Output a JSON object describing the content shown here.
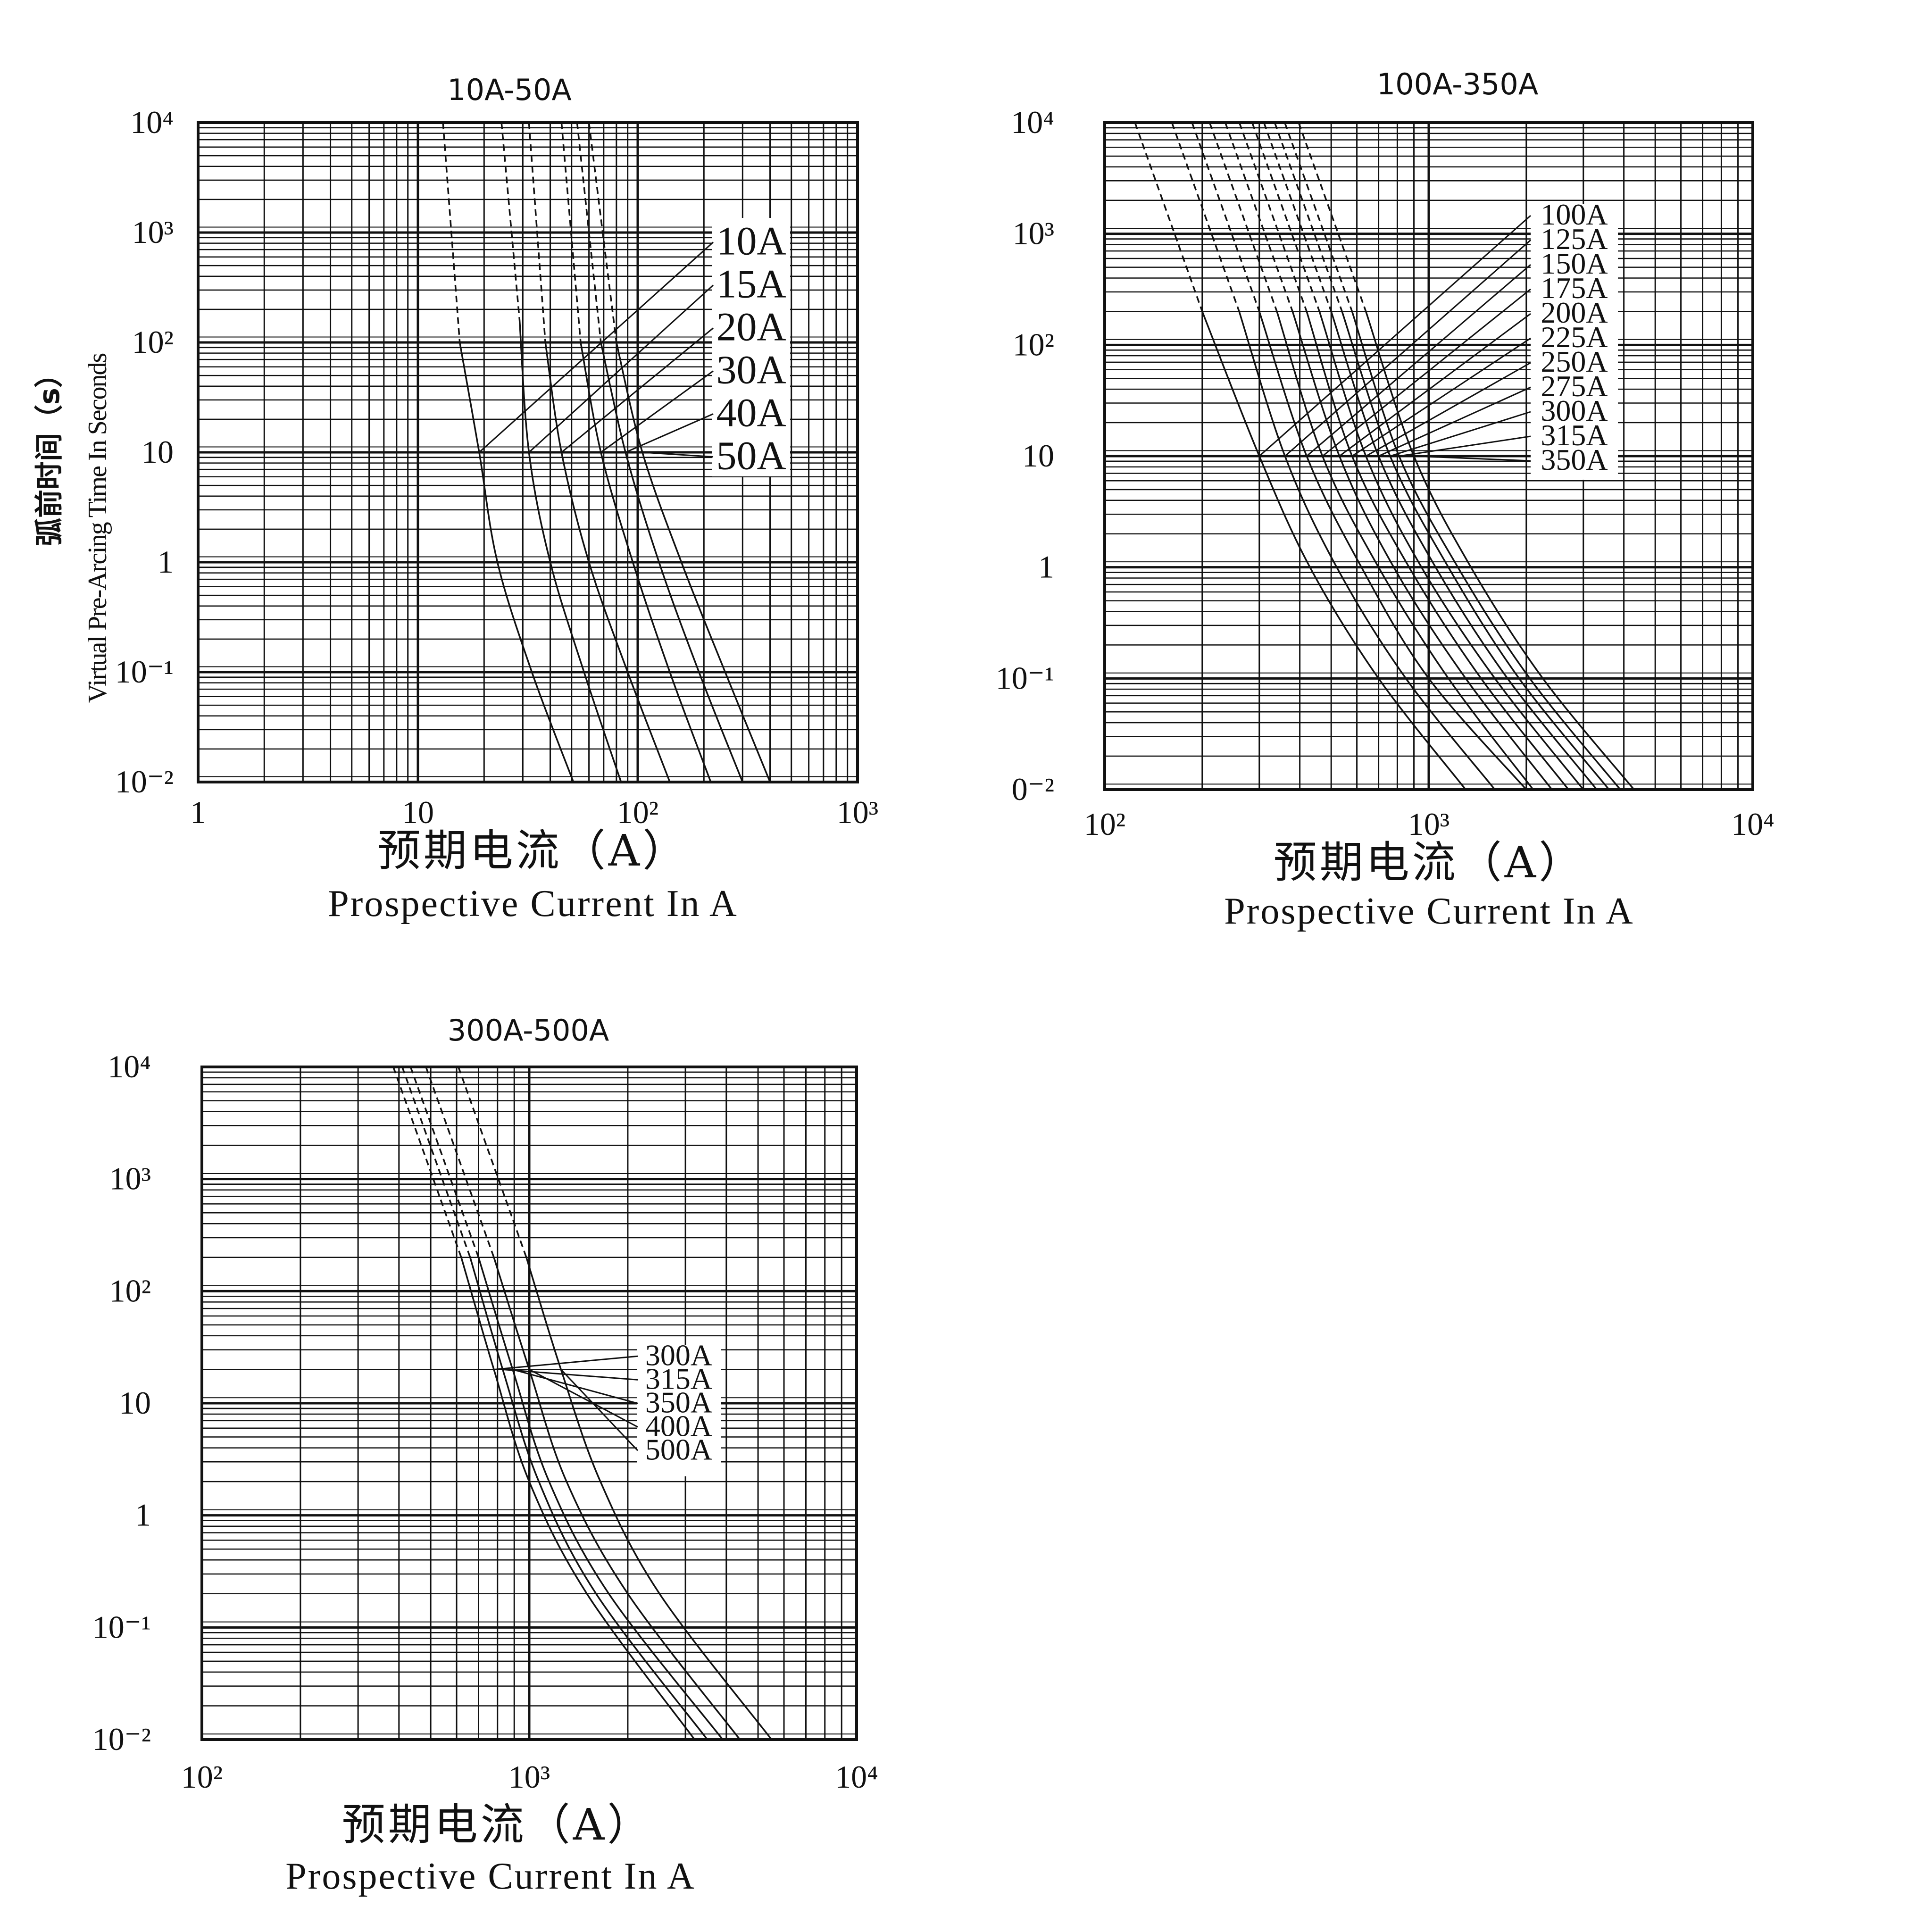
{
  "chart_data": [
    {
      "type": "line",
      "title": "10A-50A",
      "xlabel_cn": "预期电流（A）",
      "xlabel": "Prospective Current In A",
      "ylabel_cn": "弧前时间（s）",
      "ylabel": "Virtual Pre-Arcing Time In Seconds",
      "x_scale": "log",
      "y_scale": "log",
      "xlim": [
        1,
        1000
      ],
      "ylim": [
        0.01,
        10000
      ],
      "x_tick_labels": [
        "1",
        "10",
        "10²",
        "10³"
      ],
      "y_tick_labels": [
        "10⁻²",
        "10⁻¹",
        "1",
        "10",
        "10²",
        "10³",
        "10⁴"
      ],
      "grid": true,
      "legend_position": "inside right, upper",
      "series": [
        {
          "name": "10A",
          "points": [
            [
              15.5,
              100
            ],
            [
              19,
              10
            ],
            [
              23,
              1
            ],
            [
              33,
              0.1
            ],
            [
              51,
              0.01
            ]
          ],
          "dashed_top": [
            [
              13,
              10000
            ],
            [
              15.5,
              100
            ]
          ]
        },
        {
          "name": "15A",
          "points": [
            [
              29,
              160
            ],
            [
              32,
              10
            ],
            [
              40,
              1
            ],
            [
              57,
              0.1
            ],
            [
              84,
              0.01
            ]
          ],
          "dashed_top": [
            [
              24,
              10000
            ],
            [
              29,
              160
            ]
          ]
        },
        {
          "name": "20A",
          "points": [
            [
              38,
              100
            ],
            [
              45,
              10
            ],
            [
              60,
              1
            ],
            [
              90,
              0.1
            ],
            [
              140,
              0.01
            ]
          ],
          "dashed_top": [
            [
              32,
              10000
            ],
            [
              38,
              100
            ]
          ]
        },
        {
          "name": "30A",
          "points": [
            [
              55,
              100
            ],
            [
              68,
              10
            ],
            [
              95,
              1
            ],
            [
              140,
              0.1
            ],
            [
              215,
              0.01
            ]
          ],
          "dashed_top": [
            [
              45,
              10000
            ],
            [
              55,
              100
            ]
          ]
        },
        {
          "name": "40A",
          "points": [
            [
              68,
              100
            ],
            [
              88,
              10
            ],
            [
              125,
              1
            ],
            [
              190,
              0.1
            ],
            [
              300,
              0.01
            ]
          ],
          "dashed_top": [
            [
              53,
              10000
            ],
            [
              68,
              100
            ]
          ]
        },
        {
          "name": "50A",
          "points": [
            [
              80,
              100
            ],
            [
              105,
              10
            ],
            [
              158,
              1
            ],
            [
              250,
              0.1
            ],
            [
              400,
              0.01
            ]
          ],
          "dashed_top": [
            [
              60,
              10000
            ],
            [
              80,
              100
            ]
          ]
        }
      ]
    },
    {
      "type": "line",
      "title": "100A-350A",
      "xlabel_cn": "预期电流（A）",
      "xlabel": "Prospective Current In A",
      "x_scale": "log",
      "y_scale": "log",
      "xlim": [
        100,
        10000
      ],
      "ylim": [
        0.01,
        10000
      ],
      "x_tick_labels": [
        "10²",
        "10³",
        "10⁴"
      ],
      "y_tick_labels": [
        "0⁻²",
        "10⁻¹",
        "1",
        "10",
        "10²",
        "10³",
        "10⁴"
      ],
      "grid": true,
      "legend_position": "inside right, upper",
      "series": [
        {
          "name": "100A",
          "points": [
            [
              200,
              200
            ],
            [
              300,
              10
            ],
            [
              430,
              1
            ],
            [
              700,
              0.1
            ],
            [
              1300,
              0.01
            ]
          ]
        },
        {
          "name": "125A",
          "points": [
            [
              260,
              200
            ],
            [
              360,
              10
            ],
            [
              520,
              1
            ],
            [
              850,
              0.1
            ],
            [
              1600,
              0.01
            ]
          ]
        },
        {
          "name": "150A",
          "points": [
            [
              300,
              200
            ],
            [
              420,
              10
            ],
            [
              620,
              1
            ],
            [
              1000,
              0.1
            ],
            [
              2000,
              0.01
            ]
          ]
        },
        {
          "name": "175A",
          "points": [
            [
              340,
              200
            ],
            [
              470,
              10
            ],
            [
              700,
              1
            ],
            [
              1150,
              0.1
            ],
            [
              2100,
              0.01
            ]
          ]
        },
        {
          "name": "200A",
          "points": [
            [
              380,
              200
            ],
            [
              530,
              10
            ],
            [
              780,
              1
            ],
            [
              1300,
              0.1
            ],
            [
              2400,
              0.01
            ]
          ]
        },
        {
          "name": "225A",
          "points": [
            [
              420,
              200
            ],
            [
              580,
              10
            ],
            [
              870,
              1
            ],
            [
              1450,
              0.1
            ],
            [
              2700,
              0.01
            ]
          ]
        },
        {
          "name": "250A",
          "points": [
            [
              460,
              200
            ],
            [
              640,
              10
            ],
            [
              950,
              1
            ],
            [
              1600,
              0.1
            ],
            [
              3000,
              0.01
            ]
          ]
        },
        {
          "name": "275A",
          "points": [
            [
              500,
              200
            ],
            [
              700,
              10
            ],
            [
              1050,
              1
            ],
            [
              1750,
              0.1
            ],
            [
              3300,
              0.01
            ]
          ]
        },
        {
          "name": "300A",
          "points": [
            [
              540,
              200
            ],
            [
              760,
              10
            ],
            [
              1150,
              1
            ],
            [
              1900,
              0.1
            ],
            [
              3600,
              0.01
            ]
          ]
        },
        {
          "name": "315A",
          "points": [
            [
              580,
              200
            ],
            [
              810,
              10
            ],
            [
              1230,
              1
            ],
            [
              2050,
              0.1
            ],
            [
              3900,
              0.01
            ]
          ]
        },
        {
          "name": "350A",
          "points": [
            [
              640,
              200
            ],
            [
              900,
              10
            ],
            [
              1350,
              1
            ],
            [
              2250,
              0.1
            ],
            [
              4300,
              0.01
            ]
          ]
        }
      ]
    },
    {
      "type": "line",
      "title": "300A-500A",
      "xlabel_cn": "预期电流（A）",
      "xlabel": "Prospective Current In A",
      "x_scale": "log",
      "y_scale": "log",
      "xlim": [
        100,
        10000
      ],
      "ylim": [
        0.01,
        10000
      ],
      "x_tick_labels": [
        "10²",
        "10³",
        "10⁴"
      ],
      "y_tick_labels": [
        "10⁻²",
        "10⁻¹",
        "1",
        "10",
        "10²",
        "10³",
        "10⁴"
      ],
      "grid": true,
      "legend_position": "inside right, middle",
      "series": [
        {
          "name": "300A",
          "points": [
            [
              620,
              200
            ],
            [
              780,
              20
            ],
            [
              1000,
              2
            ],
            [
              1500,
              0.2
            ],
            [
              3200,
              0.01
            ]
          ]
        },
        {
          "name": "315A",
          "points": [
            [
              660,
              200
            ],
            [
              830,
              20
            ],
            [
              1070,
              2
            ],
            [
              1600,
              0.2
            ],
            [
              3500,
              0.01
            ]
          ]
        },
        {
          "name": "350A",
          "points": [
            [
              700,
              200
            ],
            [
              890,
              20
            ],
            [
              1150,
              2
            ],
            [
              1750,
              0.2
            ],
            [
              3900,
              0.01
            ]
          ]
        },
        {
          "name": "400A",
          "points": [
            [
              780,
              200
            ],
            [
              1000,
              20
            ],
            [
              1300,
              2
            ],
            [
              2000,
              0.2
            ],
            [
              4400,
              0.01
            ]
          ]
        },
        {
          "name": "500A",
          "points": [
            [
              980,
              200
            ],
            [
              1250,
              20
            ],
            [
              1650,
              2
            ],
            [
              2500,
              0.2
            ],
            [
              5500,
              0.01
            ]
          ]
        }
      ]
    }
  ]
}
